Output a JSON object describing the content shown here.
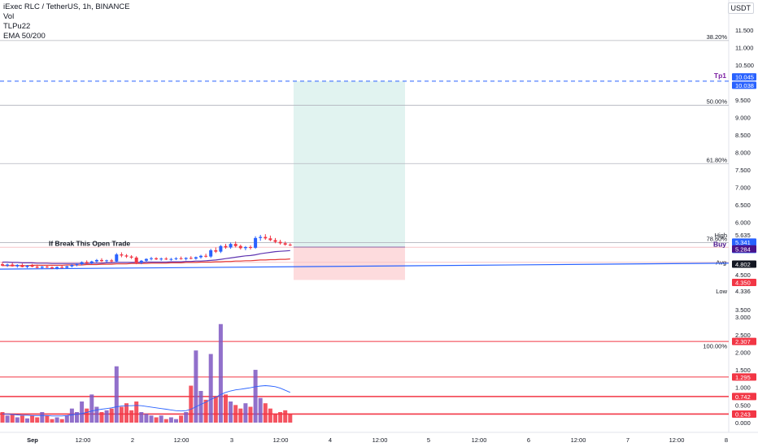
{
  "header": {
    "symbol_title": "iExec RLC / TetherUS, 1h, BINANCE",
    "indicators": [
      "Vol",
      "TLPu22",
      "EMA 50/200"
    ],
    "currency_button": "USDT"
  },
  "chart_data": {
    "type": "candlestick",
    "price_axis": {
      "ticks": [
        "11.500",
        "11.000",
        "10.500",
        "9.500",
        "9.000",
        "8.500",
        "8.000",
        "7.500",
        "7.000",
        "6.500",
        "6.000",
        "4.500",
        "4.000",
        "3.500"
      ],
      "tick_values": [
        11.5,
        11.0,
        10.5,
        9.5,
        9.0,
        8.5,
        8.0,
        7.5,
        7.0,
        6.5,
        6.0,
        4.5,
        4.0,
        3.5
      ]
    },
    "volume_axis": {
      "ticks": [
        "3.000",
        "2.500",
        "2.000",
        "1.500",
        "1.000",
        "0.500",
        "0.000"
      ],
      "tick_values": [
        3.0,
        2.5,
        2.0,
        1.5,
        1.0,
        0.5,
        0.0
      ]
    },
    "time_axis": {
      "labels": [
        "Sep",
        "12:00",
        "2",
        "12:00",
        "3",
        "12:00",
        "4",
        "12:00",
        "5",
        "12:00",
        "6",
        "12:00",
        "7",
        "12:00",
        "8"
      ]
    },
    "fib_levels": [
      {
        "label": "38.20%",
        "value": 11.2
      },
      {
        "label": "50.00%",
        "value": 9.35
      },
      {
        "label": "61.80%",
        "value": 7.68
      },
      {
        "label": "78.60%",
        "value": 5.42
      }
    ],
    "volume_levels": [
      {
        "label": "100.00%",
        "value": 2.2
      },
      {
        "label": "2.307",
        "value": 2.307
      },
      {
        "label": "1.295",
        "value": 1.295
      },
      {
        "label": "0.742",
        "value": 0.742
      },
      {
        "label": "0.243",
        "value": 0.243
      }
    ],
    "price_labels": [
      {
        "name": "Tp1",
        "value": 10.045,
        "value2": 10.038
      },
      {
        "name": "High",
        "value": 5.635
      },
      {
        "name": "current",
        "value": 5.341,
        "countdown": "37:40"
      },
      {
        "name": "Buy",
        "value": 5.284
      },
      {
        "name": "Avg",
        "value": 4.856
      },
      {
        "name": "last",
        "value": 4.802
      },
      {
        "name": "stop",
        "value": 4.35
      },
      {
        "name": "Low",
        "value": 4.336
      }
    ],
    "price_label_text": {
      "tp1": "Tp1",
      "tp1_value": "10.045",
      "tp1_value2": "10.038",
      "high": "High",
      "high_value": "5.635",
      "current_value": "5.341",
      "countdown": "37:40",
      "buy": "Buy",
      "buy_value": "5.284",
      "avg": "Avg",
      "avg_value": "4.856",
      "last_value": "4.802",
      "stop_value": "4.350",
      "low": "Low",
      "low_value": "4.336"
    },
    "annotation": "If Break This Open Trade",
    "position": {
      "entry": 5.284,
      "target": 10.038,
      "stop": 4.35
    },
    "candles": [
      {
        "t": 0,
        "o": 4.8,
        "h": 4.86,
        "l": 4.74,
        "c": 4.76
      },
      {
        "t": 1,
        "o": 4.76,
        "h": 4.82,
        "l": 4.72,
        "c": 4.79
      },
      {
        "t": 2,
        "o": 4.79,
        "h": 4.84,
        "l": 4.73,
        "c": 4.74
      },
      {
        "t": 3,
        "o": 4.74,
        "h": 4.8,
        "l": 4.7,
        "c": 4.78
      },
      {
        "t": 4,
        "o": 4.78,
        "h": 4.82,
        "l": 4.71,
        "c": 4.72
      },
      {
        "t": 5,
        "o": 4.72,
        "h": 4.78,
        "l": 4.69,
        "c": 4.76
      },
      {
        "t": 6,
        "o": 4.76,
        "h": 4.81,
        "l": 4.71,
        "c": 4.73
      },
      {
        "t": 7,
        "o": 4.73,
        "h": 4.79,
        "l": 4.68,
        "c": 4.7
      },
      {
        "t": 8,
        "o": 4.7,
        "h": 4.75,
        "l": 4.66,
        "c": 4.73
      },
      {
        "t": 9,
        "o": 4.73,
        "h": 4.78,
        "l": 4.69,
        "c": 4.71
      },
      {
        "t": 10,
        "o": 4.71,
        "h": 4.74,
        "l": 4.66,
        "c": 4.68
      },
      {
        "t": 11,
        "o": 4.68,
        "h": 4.74,
        "l": 4.65,
        "c": 4.72
      },
      {
        "t": 12,
        "o": 4.72,
        "h": 4.77,
        "l": 4.68,
        "c": 4.7
      },
      {
        "t": 13,
        "o": 4.7,
        "h": 4.76,
        "l": 4.67,
        "c": 4.74
      },
      {
        "t": 14,
        "o": 4.74,
        "h": 4.8,
        "l": 4.71,
        "c": 4.78
      },
      {
        "t": 15,
        "o": 4.78,
        "h": 4.83,
        "l": 4.74,
        "c": 4.8
      },
      {
        "t": 16,
        "o": 4.8,
        "h": 4.88,
        "l": 4.77,
        "c": 4.86
      },
      {
        "t": 17,
        "o": 4.86,
        "h": 4.91,
        "l": 4.8,
        "c": 4.83
      },
      {
        "t": 18,
        "o": 4.83,
        "h": 4.9,
        "l": 4.8,
        "c": 4.88
      },
      {
        "t": 19,
        "o": 4.88,
        "h": 4.95,
        "l": 4.84,
        "c": 4.92
      },
      {
        "t": 20,
        "o": 4.92,
        "h": 4.97,
        "l": 4.86,
        "c": 4.89
      },
      {
        "t": 21,
        "o": 4.89,
        "h": 4.93,
        "l": 4.84,
        "c": 4.91
      },
      {
        "t": 22,
        "o": 4.91,
        "h": 4.95,
        "l": 4.86,
        "c": 4.88
      },
      {
        "t": 23,
        "o": 4.88,
        "h": 5.12,
        "l": 4.85,
        "c": 5.08
      },
      {
        "t": 24,
        "o": 5.08,
        "h": 5.14,
        "l": 5.0,
        "c": 5.05
      },
      {
        "t": 25,
        "o": 5.05,
        "h": 5.09,
        "l": 4.98,
        "c": 5.02
      },
      {
        "t": 26,
        "o": 5.02,
        "h": 5.06,
        "l": 4.95,
        "c": 4.99
      },
      {
        "t": 27,
        "o": 4.99,
        "h": 5.03,
        "l": 4.8,
        "c": 4.84
      },
      {
        "t": 28,
        "o": 4.84,
        "h": 4.92,
        "l": 4.8,
        "c": 4.9
      },
      {
        "t": 29,
        "o": 4.9,
        "h": 4.97,
        "l": 4.87,
        "c": 4.95
      },
      {
        "t": 30,
        "o": 4.95,
        "h": 5.01,
        "l": 4.91,
        "c": 4.97
      },
      {
        "t": 31,
        "o": 4.97,
        "h": 5.0,
        "l": 4.92,
        "c": 4.94
      },
      {
        "t": 32,
        "o": 4.94,
        "h": 4.99,
        "l": 4.9,
        "c": 4.96
      },
      {
        "t": 33,
        "o": 4.96,
        "h": 5.0,
        "l": 4.92,
        "c": 4.94
      },
      {
        "t": 34,
        "o": 4.94,
        "h": 4.98,
        "l": 4.9,
        "c": 4.95
      },
      {
        "t": 35,
        "o": 4.95,
        "h": 5.0,
        "l": 4.92,
        "c": 4.97
      },
      {
        "t": 36,
        "o": 4.97,
        "h": 5.02,
        "l": 4.93,
        "c": 4.95
      },
      {
        "t": 37,
        "o": 4.95,
        "h": 5.0,
        "l": 4.91,
        "c": 4.98
      },
      {
        "t": 38,
        "o": 4.98,
        "h": 5.03,
        "l": 4.94,
        "c": 4.96
      },
      {
        "t": 39,
        "o": 4.96,
        "h": 5.02,
        "l": 4.93,
        "c": 5.0
      },
      {
        "t": 40,
        "o": 5.0,
        "h": 5.07,
        "l": 4.96,
        "c": 5.04
      },
      {
        "t": 41,
        "o": 5.04,
        "h": 5.1,
        "l": 4.99,
        "c": 5.02
      },
      {
        "t": 42,
        "o": 5.02,
        "h": 5.24,
        "l": 4.98,
        "c": 5.2
      },
      {
        "t": 43,
        "o": 5.2,
        "h": 5.28,
        "l": 5.12,
        "c": 5.16
      },
      {
        "t": 44,
        "o": 5.16,
        "h": 5.35,
        "l": 5.12,
        "c": 5.32
      },
      {
        "t": 45,
        "o": 5.32,
        "h": 5.38,
        "l": 5.24,
        "c": 5.28
      },
      {
        "t": 46,
        "o": 5.28,
        "h": 5.42,
        "l": 5.24,
        "c": 5.38
      },
      {
        "t": 47,
        "o": 5.38,
        "h": 5.45,
        "l": 5.28,
        "c": 5.32
      },
      {
        "t": 48,
        "o": 5.32,
        "h": 5.36,
        "l": 5.22,
        "c": 5.26
      },
      {
        "t": 49,
        "o": 5.26,
        "h": 5.32,
        "l": 5.2,
        "c": 5.29
      },
      {
        "t": 50,
        "o": 5.29,
        "h": 5.34,
        "l": 5.22,
        "c": 5.27
      },
      {
        "t": 51,
        "o": 5.27,
        "h": 5.6,
        "l": 5.24,
        "c": 5.55
      },
      {
        "t": 52,
        "o": 5.55,
        "h": 5.64,
        "l": 5.47,
        "c": 5.58
      },
      {
        "t": 53,
        "o": 5.58,
        "h": 5.66,
        "l": 5.5,
        "c": 5.54
      },
      {
        "t": 54,
        "o": 5.54,
        "h": 5.62,
        "l": 5.46,
        "c": 5.49
      },
      {
        "t": 55,
        "o": 5.49,
        "h": 5.55,
        "l": 5.4,
        "c": 5.44
      },
      {
        "t": 56,
        "o": 5.44,
        "h": 5.5,
        "l": 5.36,
        "c": 5.4
      },
      {
        "t": 57,
        "o": 5.4,
        "h": 5.45,
        "l": 5.33,
        "c": 5.36
      },
      {
        "t": 58,
        "o": 5.36,
        "h": 5.4,
        "l": 5.32,
        "c": 5.34
      }
    ],
    "volumes": [
      0.3,
      0.2,
      0.25,
      0.15,
      0.2,
      0.12,
      0.2,
      0.15,
      0.3,
      0.2,
      0.1,
      0.15,
      0.1,
      0.2,
      0.4,
      0.3,
      0.6,
      0.4,
      0.8,
      0.45,
      0.3,
      0.35,
      0.4,
      1.6,
      0.45,
      0.55,
      0.35,
      0.6,
      0.3,
      0.25,
      0.2,
      0.15,
      0.2,
      0.1,
      0.15,
      0.1,
      0.2,
      0.3,
      1.05,
      2.05,
      0.9,
      0.65,
      1.95,
      0.75,
      2.8,
      0.8,
      0.6,
      0.5,
      0.4,
      0.55,
      0.45,
      1.5,
      0.7,
      0.55,
      0.4,
      0.25,
      0.3,
      0.35,
      0.25
    ],
    "volume_ma": [
      0.25,
      0.24,
      0.23,
      0.22,
      0.21,
      0.21,
      0.2,
      0.2,
      0.2,
      0.2,
      0.19,
      0.19,
      0.19,
      0.2,
      0.22,
      0.24,
      0.26,
      0.29,
      0.33,
      0.36,
      0.38,
      0.4,
      0.42,
      0.45,
      0.47,
      0.48,
      0.48,
      0.49,
      0.48,
      0.46,
      0.44,
      0.42,
      0.4,
      0.38,
      0.36,
      0.34,
      0.33,
      0.34,
      0.38,
      0.45,
      0.52,
      0.58,
      0.66,
      0.72,
      0.8,
      0.86,
      0.9,
      0.93,
      0.95,
      0.97,
      0.99,
      1.02,
      1.04,
      1.05,
      1.04,
      1.02,
      0.98,
      0.92,
      0.86
    ],
    "ema50": [
      4.86,
      4.86,
      4.85,
      4.85,
      4.84,
      4.84,
      4.84,
      4.83,
      4.83,
      4.83,
      4.82,
      4.82,
      4.82,
      4.82,
      4.82,
      4.82,
      4.82,
      4.82,
      4.83,
      4.83,
      4.83,
      4.84,
      4.84,
      4.85,
      4.85,
      4.85,
      4.85,
      4.85,
      4.85,
      4.86,
      4.86,
      4.86,
      4.86,
      4.86,
      4.87,
      4.87,
      4.87,
      4.88,
      4.88,
      4.89,
      4.89,
      4.9,
      4.91,
      4.92,
      4.94,
      4.96,
      4.98,
      5.0,
      5.02,
      5.04,
      5.05,
      5.07,
      5.1,
      5.12,
      5.14,
      5.16,
      5.17,
      5.18,
      5.19
    ],
    "ema200": [
      4.76,
      4.76,
      4.76,
      4.76,
      4.76,
      4.76,
      4.77,
      4.77,
      4.77,
      4.77,
      4.77,
      4.77,
      4.77,
      4.78,
      4.78,
      4.78,
      4.78,
      4.79,
      4.79,
      4.79,
      4.8,
      4.8,
      4.8,
      4.81,
      4.81,
      4.81,
      4.82,
      4.82,
      4.82,
      4.82,
      4.83,
      4.83,
      4.83,
      4.83,
      4.84,
      4.84,
      4.84,
      4.85,
      4.85,
      4.85,
      4.86,
      4.86,
      4.86,
      4.87,
      4.87,
      4.88,
      4.88,
      4.89,
      4.89,
      4.9,
      4.9,
      4.91,
      4.92,
      4.92,
      4.93,
      4.93,
      4.94,
      4.94,
      4.95
    ],
    "trendline": {
      "start": 4.66,
      "end": 4.83
    }
  }
}
